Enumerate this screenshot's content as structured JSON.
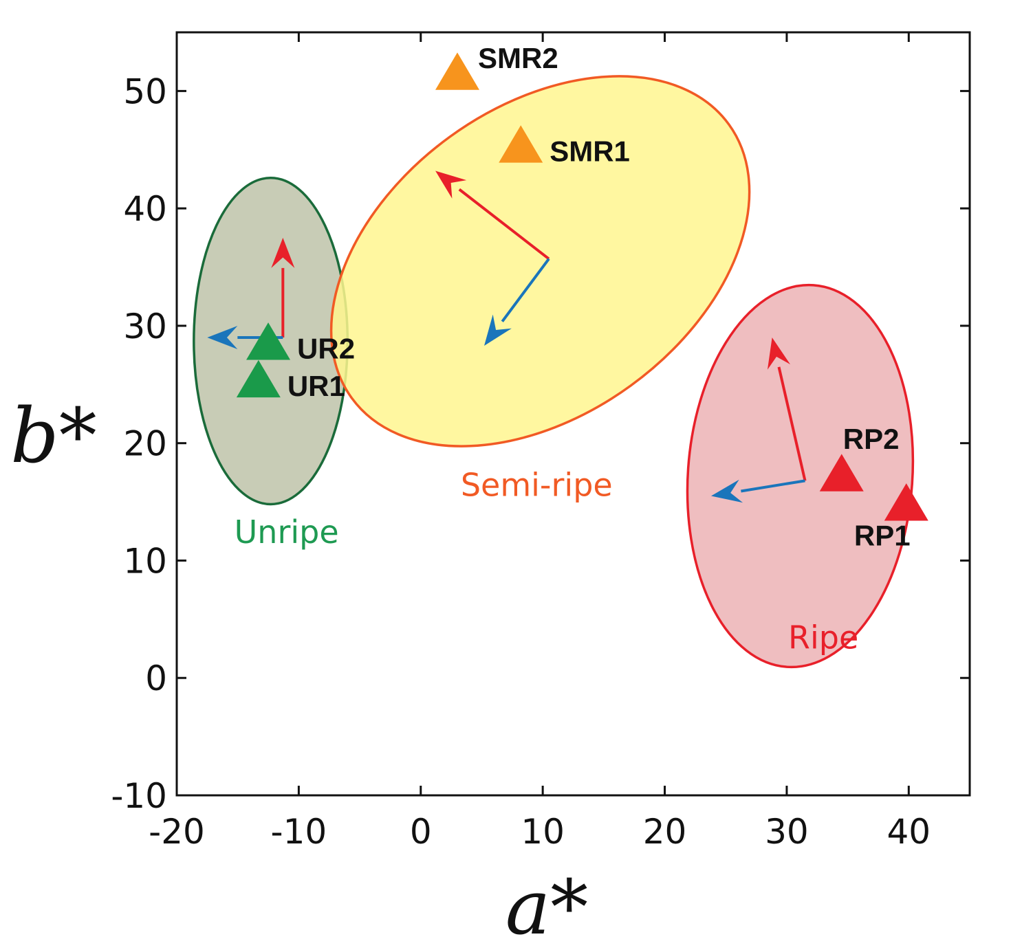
{
  "chart_data": {
    "type": "scatter",
    "xlabel": "a*",
    "ylabel": "b*",
    "xlim": [
      -20,
      45
    ],
    "ylim": [
      -10,
      55
    ],
    "xticks": [
      -20,
      -10,
      0,
      10,
      20,
      30,
      40
    ],
    "yticks": [
      -10,
      0,
      10,
      20,
      30,
      40,
      50
    ],
    "xtick_labels": [
      "-20",
      "-10",
      "0",
      "10",
      "20",
      "30",
      "40"
    ],
    "ytick_labels": [
      "-10",
      "0",
      "10",
      "20",
      "30",
      "40",
      "50"
    ],
    "clusters": [
      {
        "name": "Unripe",
        "label": "Unripe",
        "label_pos": [
          -11,
          11.5
        ],
        "center": [
          -12.3,
          28.7
        ],
        "semi_axes": [
          6.3,
          13.9
        ],
        "rotation_deg": 0,
        "fill": "#c8ccb6",
        "stroke": "#1a6b3a",
        "label_color": "#1e9a52",
        "arrows": [
          {
            "color": "#e8202a",
            "from": [
              -11.3,
              29
            ],
            "to": [
              -11.3,
              37.5
            ]
          },
          {
            "color": "#1a75bb",
            "from": [
              -11.3,
              29
            ],
            "to": [
              -17.5,
              29
            ]
          }
        ]
      },
      {
        "name": "Semi-ripe",
        "label": "Semi-ripe",
        "label_pos": [
          9.5,
          15.5
        ],
        "center": [
          9.8,
          35.5
        ],
        "semi_axes": [
          19.1,
          13.1
        ],
        "rotation_deg": -36,
        "fill": "#fff68f",
        "stroke": "#f15a24",
        "label_color": "#f15a24",
        "arrows": [
          {
            "color": "#e8202a",
            "from": [
              10.5,
              35.7
            ],
            "to": [
              1.2,
              43.2
            ]
          },
          {
            "color": "#1a75bb",
            "from": [
              10.5,
              35.7
            ],
            "to": [
              5.2,
              28.3
            ]
          }
        ]
      },
      {
        "name": "Ripe",
        "label": "Ripe",
        "label_pos": [
          33,
          2.5
        ],
        "center": [
          31.1,
          17.2
        ],
        "semi_axes": [
          9.2,
          16.3
        ],
        "rotation_deg": 4,
        "fill": "rgba(220,110,115,0.45)",
        "stroke": "#e8202a",
        "label_color": "#e8202a",
        "arrows": [
          {
            "color": "#e8202a",
            "from": [
              31.5,
              16.8
            ],
            "to": [
              28.8,
              29
            ]
          },
          {
            "color": "#1a75bb",
            "from": [
              31.5,
              16.8
            ],
            "to": [
              23.8,
              15.5
            ]
          }
        ]
      }
    ],
    "points": [
      {
        "label": "UR2",
        "x": -12.5,
        "y": 28.5,
        "color": "#1a9a4a",
        "label_offset": "right"
      },
      {
        "label": "UR1",
        "x": -13.3,
        "y": 25.3,
        "color": "#1a9a4a",
        "label_offset": "right"
      },
      {
        "label": "SMR2",
        "x": 3.0,
        "y": 51.5,
        "color": "#f7941d",
        "label_offset": "upper-right"
      },
      {
        "label": "SMR1",
        "x": 8.2,
        "y": 45.3,
        "color": "#f7941d",
        "label_offset": "right"
      },
      {
        "label": "RP2",
        "x": 34.5,
        "y": 17.3,
        "color": "#e8202a",
        "label_offset": "above"
      },
      {
        "label": "RP1",
        "x": 39.8,
        "y": 14.8,
        "color": "#e8202a",
        "label_offset": "below-left"
      }
    ]
  }
}
